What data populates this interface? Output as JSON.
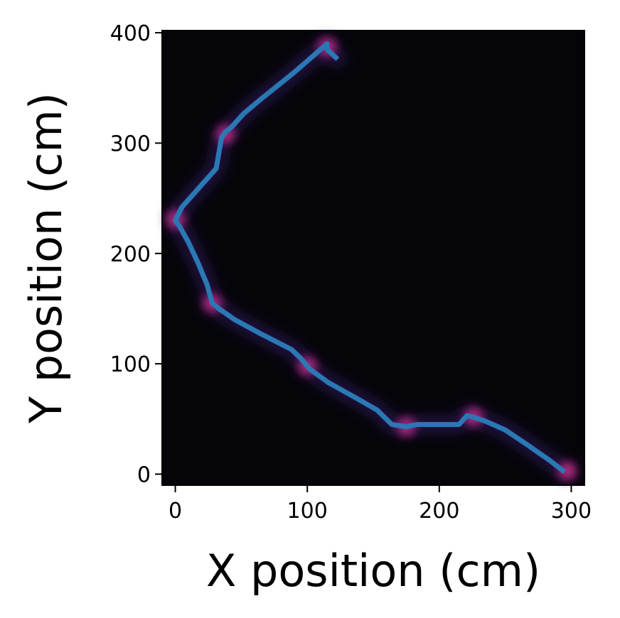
{
  "chart_data": {
    "type": "line",
    "title": "",
    "xlabel": "X position (cm)",
    "ylabel": "Y position (cm)",
    "xlim": [
      -10,
      310
    ],
    "ylim": [
      -10,
      402
    ],
    "xticks": [
      0,
      100,
      200,
      300
    ],
    "yticks": [
      0,
      100,
      200,
      300,
      400
    ],
    "xtick_labels": [
      "0",
      "100",
      "200",
      "300"
    ],
    "ytick_labels": [
      "0",
      "100",
      "200",
      "300",
      "400"
    ],
    "grid": false,
    "legend": "none",
    "background": "#050509",
    "line_color": "#2a78b4",
    "glow_color": "#b0268f",
    "series": [
      {
        "x": [
          123,
          115,
          115,
          90,
          65,
          52,
          43,
          38,
          35,
          31,
          5,
          0,
          3,
          10,
          17,
          24,
          28,
          33,
          45,
          65,
          88,
          95,
          102,
          116,
          140,
          153,
          164,
          175,
          183,
          215,
          221,
          225,
          235,
          250,
          265,
          283,
          295
        ],
        "y": [
          376,
          385,
          390,
          364,
          340,
          327,
          315,
          310,
          305,
          277,
          242,
          230,
          225,
          210,
          192,
          172,
          155,
          150,
          140,
          127,
          113,
          105,
          95,
          83,
          67,
          58,
          45,
          43,
          45,
          45,
          53,
          52,
          48,
          40,
          28,
          13,
          2
        ]
      }
    ],
    "hotspots": [
      {
        "x": 115,
        "y": 387
      },
      {
        "x": 0,
        "y": 231
      },
      {
        "x": 28,
        "y": 155
      },
      {
        "x": 100,
        "y": 98
      },
      {
        "x": 175,
        "y": 43
      },
      {
        "x": 226,
        "y": 52
      },
      {
        "x": 297,
        "y": 3
      },
      {
        "x": 38,
        "y": 308
      }
    ]
  }
}
